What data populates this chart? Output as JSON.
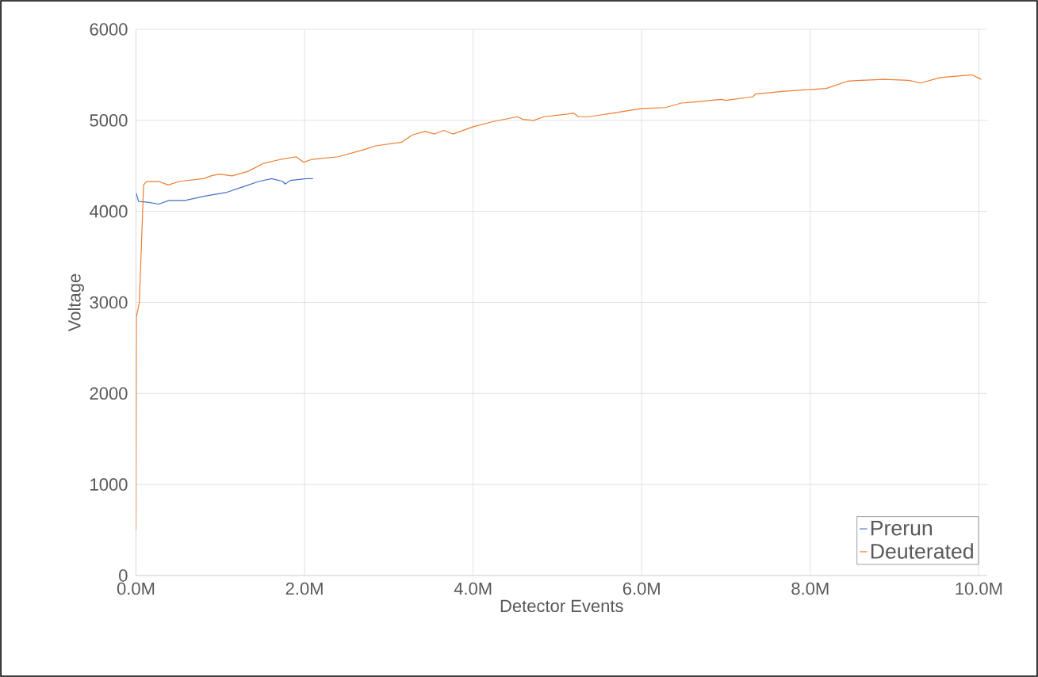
{
  "chart_data": {
    "type": "line",
    "xlabel": "Detector Events",
    "ylabel": "Voltage",
    "xlim": [
      0,
      10100000
    ],
    "ylim": [
      0,
      6000
    ],
    "xticks": [
      {
        "value": 0,
        "label": "0.0M"
      },
      {
        "value": 2000000,
        "label": "2.0M"
      },
      {
        "value": 4000000,
        "label": "4.0M"
      },
      {
        "value": 6000000,
        "label": "6.0M"
      },
      {
        "value": 8000000,
        "label": "8.0M"
      },
      {
        "value": 10000000,
        "label": "10.0M"
      }
    ],
    "yticks": [
      0,
      1000,
      2000,
      3000,
      4000,
      5000,
      6000
    ],
    "grid": true,
    "legend": "bottom right",
    "marker": "none",
    "line_style": "solid",
    "series": [
      {
        "name": "Prerun",
        "color": "#4472c4",
        "x": [
          3000,
          30000,
          140000,
          270000,
          390000,
          580000,
          830000,
          1080000,
          1270000,
          1460000,
          1610000,
          1740000,
          1770000,
          1830000,
          2020000,
          2100000
        ],
        "values": [
          4200,
          4110,
          4100,
          4080,
          4120,
          4120,
          4170,
          4210,
          4270,
          4330,
          4360,
          4330,
          4300,
          4340,
          4360,
          4360
        ]
      },
      {
        "name": "Deuterated",
        "color": "#ed7d31",
        "x": [
          0,
          5000,
          40000,
          90000,
          127000,
          270000,
          380000,
          520000,
          800000,
          890000,
          990000,
          1140000,
          1330000,
          1520000,
          1710000,
          1900000,
          1990000,
          2080000,
          2400000,
          2710000,
          2840000,
          3150000,
          3280000,
          3430000,
          3540000,
          3650000,
          3760000,
          4000000,
          4250000,
          4530000,
          4590000,
          4720000,
          4840000,
          5120000,
          5190000,
          5250000,
          5370000,
          5660000,
          6000000,
          6280000,
          6470000,
          6600000,
          6940000,
          7000000,
          7320000,
          7350000,
          7690000,
          8010000,
          8190000,
          8440000,
          8600000,
          8880000,
          9170000,
          9310000,
          9540000,
          9920000,
          10030000
        ],
        "values": [
          500,
          2840,
          3000,
          4290,
          4330,
          4330,
          4290,
          4330,
          4360,
          4390,
          4410,
          4390,
          4440,
          4530,
          4570,
          4600,
          4540,
          4570,
          4600,
          4680,
          4720,
          4760,
          4840,
          4880,
          4850,
          4890,
          4850,
          4930,
          4990,
          5040,
          5010,
          5000,
          5040,
          5070,
          5080,
          5040,
          5040,
          5080,
          5130,
          5140,
          5190,
          5200,
          5230,
          5220,
          5260,
          5290,
          5320,
          5340,
          5350,
          5430,
          5440,
          5450,
          5440,
          5410,
          5470,
          5500,
          5450
        ]
      }
    ]
  }
}
